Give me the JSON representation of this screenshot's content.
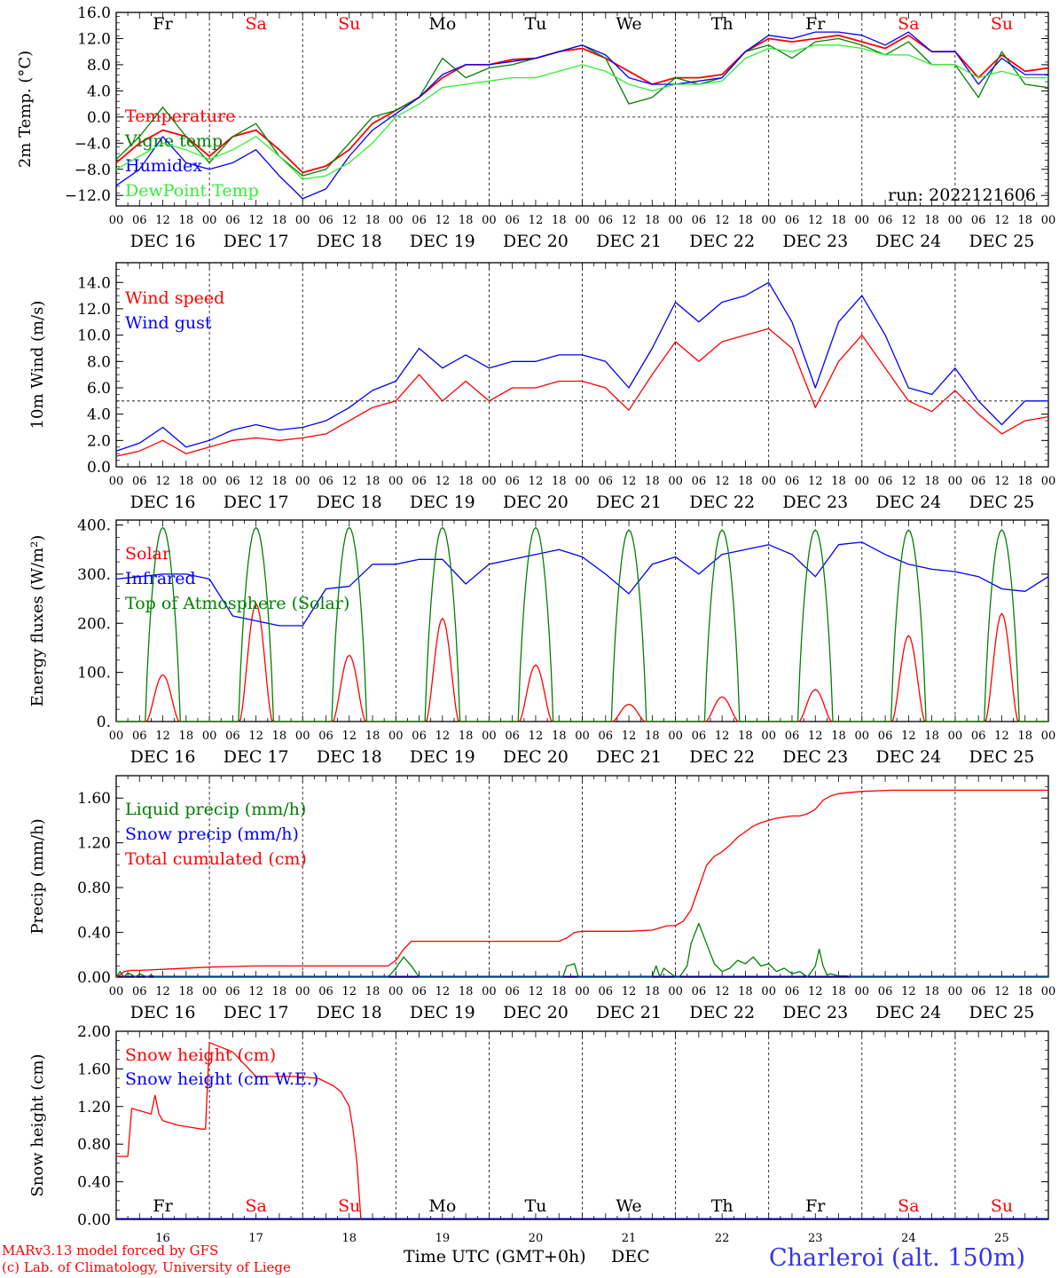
{
  "run_label": "run: 2022121606",
  "xaxis_title": "Time UTC (GMT+0h)",
  "month_label": "DEC",
  "credit_line1": "MARv3.13 model forced by GFS",
  "credit_line2": "(c) Lab. of Climatology, University of Liege",
  "station_label": "Charleroi (alt. 150m)",
  "colors": {
    "red": "#ff0000",
    "green": "#008000",
    "blue": "#0000ff",
    "lightgreen": "#33ee33",
    "station": "#3333ee"
  },
  "days": [
    {
      "abbr": "Fr",
      "date": "DEC 16",
      "num": "16",
      "weekend": false
    },
    {
      "abbr": "Sa",
      "date": "DEC 17",
      "num": "17",
      "weekend": true
    },
    {
      "abbr": "Su",
      "date": "DEC 18",
      "num": "18",
      "weekend": true
    },
    {
      "abbr": "Mo",
      "date": "DEC 19",
      "num": "19",
      "weekend": false
    },
    {
      "abbr": "Tu",
      "date": "DEC 20",
      "num": "20",
      "weekend": false
    },
    {
      "abbr": "We",
      "date": "DEC 21",
      "num": "21",
      "weekend": false
    },
    {
      "abbr": "Th",
      "date": "DEC 22",
      "num": "22",
      "weekend": false
    },
    {
      "abbr": "Fr",
      "date": "DEC 23",
      "num": "23",
      "weekend": false
    },
    {
      "abbr": "Sa",
      "date": "DEC 24",
      "num": "24",
      "weekend": true
    },
    {
      "abbr": "Su",
      "date": "DEC 25",
      "num": "25",
      "weekend": true
    }
  ],
  "hour_labels": [
    "00",
    "06",
    "12",
    "18"
  ],
  "chart_data": [
    {
      "type": "line",
      "ylabel": "2m Temp. (°C)",
      "ylim": [
        -13.6,
        16
      ],
      "yticks": [
        -12,
        -8,
        -4,
        0,
        4,
        8,
        12,
        16
      ],
      "ytick_labels": [
        "−12.0",
        "−8.0",
        "−4.0",
        "0.0",
        "4.0",
        "8.0",
        "12.0",
        "16.0"
      ],
      "ref_line": 0,
      "x_hours": [
        0,
        6,
        12,
        18,
        24,
        30,
        36,
        42,
        48,
        54,
        60,
        66,
        72,
        78,
        84,
        90,
        96,
        102,
        108,
        114,
        120,
        126,
        132,
        138,
        144,
        150,
        156,
        162,
        168,
        174,
        180,
        186,
        192,
        198,
        204,
        210,
        216,
        222,
        228,
        234,
        240
      ],
      "series": [
        {
          "name": "Temperature",
          "color": "#ff0000",
          "values": [
            -7,
            -4,
            -2,
            -3,
            -6,
            -3,
            -2,
            -5,
            -8.5,
            -7.5,
            -5,
            -1,
            1,
            3,
            6,
            8,
            8,
            8.8,
            9,
            10,
            10.5,
            9,
            7,
            5,
            6,
            6,
            6.5,
            10,
            12,
            11.5,
            12,
            12.5,
            11.5,
            10.5,
            12.5,
            10,
            10,
            6,
            9.5,
            7,
            7.5
          ]
        },
        {
          "name": "Vigne temp",
          "color": "#008000",
          "values": [
            -6.5,
            -3,
            1.5,
            -3,
            -7,
            -3,
            -1,
            -6,
            -9,
            -8,
            -4,
            0,
            1,
            3,
            9,
            6,
            7.5,
            8,
            9,
            10,
            11,
            9,
            2,
            3,
            6,
            5,
            6,
            10,
            11,
            9,
            11.5,
            12,
            11,
            9.5,
            11.5,
            8,
            8,
            3,
            10,
            5,
            4.5
          ]
        },
        {
          "name": "Humidex",
          "color": "#0000ff",
          "values": [
            -10.5,
            -8,
            -3,
            -7,
            -8,
            -7,
            -5,
            -9,
            -12.5,
            -11,
            -6,
            -2,
            0.5,
            3,
            6.5,
            8,
            8,
            8.5,
            9,
            10,
            11,
            9.5,
            6,
            5,
            5,
            5.5,
            6,
            10,
            12.5,
            12,
            13,
            13,
            12.5,
            11,
            13,
            10,
            10,
            5,
            9,
            6.5,
            6.5
          ]
        },
        {
          "name": "DewPoint Temp",
          "color": "#33ee33",
          "values": [
            -8,
            -6,
            -4,
            -5,
            -6.5,
            -5,
            -3,
            -6,
            -9.5,
            -9,
            -7,
            -4,
            0,
            2,
            4.5,
            5,
            5.5,
            6,
            6,
            7,
            8,
            7,
            5,
            4,
            5,
            5,
            5.5,
            9,
            10.5,
            10,
            11,
            11,
            10.5,
            9.5,
            9.5,
            8,
            8,
            6,
            7,
            6,
            6
          ]
        }
      ]
    },
    {
      "type": "line",
      "ylabel": "10m Wind (m/s)",
      "ylim": [
        0,
        15.5
      ],
      "yticks": [
        0,
        2,
        4,
        6,
        8,
        10,
        12,
        14
      ],
      "ytick_labels": [
        "0.0",
        "2.0",
        "4.0",
        "6.0",
        "8.0",
        "10.0",
        "12.0",
        "14.0"
      ],
      "ref_line": 5,
      "x_hours": [
        0,
        6,
        12,
        18,
        24,
        30,
        36,
        42,
        48,
        54,
        60,
        66,
        72,
        78,
        84,
        90,
        96,
        102,
        108,
        114,
        120,
        126,
        132,
        138,
        144,
        150,
        156,
        162,
        168,
        174,
        180,
        186,
        192,
        198,
        204,
        210,
        216,
        222,
        228,
        234,
        240
      ],
      "series": [
        {
          "name": "Wind speed",
          "color": "#ff0000",
          "values": [
            0.8,
            1.2,
            2,
            1,
            1.5,
            2,
            2.2,
            2,
            2.2,
            2.5,
            3.5,
            4.5,
            5,
            7,
            5,
            6.5,
            5,
            6,
            6,
            6.5,
            6.5,
            6,
            4.3,
            7,
            9.5,
            8,
            9.5,
            10,
            10.5,
            9,
            4.5,
            8,
            10,
            7.5,
            5,
            4.2,
            5.8,
            4,
            2.5,
            3.5,
            3.8
          ]
        },
        {
          "name": "Wind gust",
          "color": "#0000ff",
          "values": [
            1.2,
            1.8,
            3,
            1.5,
            2,
            2.8,
            3.2,
            2.8,
            3,
            3.5,
            4.5,
            5.8,
            6.5,
            9,
            7.5,
            8.5,
            7.5,
            8,
            8,
            8.5,
            8.5,
            8,
            6,
            9,
            12.5,
            11,
            12.5,
            13,
            14,
            11,
            6,
            11,
            13,
            10,
            6,
            5.5,
            7.5,
            5,
            3.2,
            5,
            5
          ]
        }
      ]
    },
    {
      "type": "line",
      "ylabel": "Energy fluxes (W/m²)",
      "ylim": [
        0,
        410
      ],
      "yticks": [
        0,
        100,
        200,
        300,
        400
      ],
      "ytick_labels": [
        "0.",
        "100.",
        "200.",
        "300.",
        "400."
      ],
      "daily_peak_hour": 12,
      "series": [
        {
          "name": "Solar",
          "color": "#ff0000",
          "daily_peak": [
            95,
            240,
            135,
            210,
            115,
            35,
            50,
            65,
            175,
            220
          ]
        },
        {
          "name": "Infrared",
          "color": "#0000ff",
          "x_hours": [
            0,
            6,
            12,
            18,
            24,
            30,
            36,
            42,
            48,
            54,
            60,
            66,
            72,
            78,
            84,
            90,
            96,
            102,
            108,
            114,
            120,
            126,
            132,
            138,
            144,
            150,
            156,
            162,
            168,
            174,
            180,
            186,
            192,
            198,
            204,
            210,
            216,
            222,
            228,
            234,
            240
          ],
          "values": [
            290,
            295,
            300,
            300,
            290,
            215,
            205,
            195,
            195,
            270,
            275,
            320,
            320,
            330,
            330,
            280,
            320,
            330,
            340,
            350,
            335,
            300,
            260,
            320,
            335,
            300,
            340,
            350,
            360,
            340,
            295,
            360,
            365,
            340,
            320,
            310,
            305,
            295,
            270,
            265,
            295
          ]
        },
        {
          "name": "Top of Atmosphere (Solar)",
          "color": "#008000",
          "daily_peak": [
            395,
            395,
            395,
            395,
            395,
            390,
            390,
            390,
            390,
            390
          ]
        }
      ]
    },
    {
      "type": "line",
      "ylabel": "Precip (mm/h)",
      "ylim": [
        0,
        1.8
      ],
      "yticks": [
        0,
        0.4,
        0.8,
        1.2,
        1.6
      ],
      "ytick_labels": [
        "0.00",
        "0.40",
        "0.80",
        "1.20",
        "1.60"
      ],
      "series": [
        {
          "name": "Liquid precip (mm/h)",
          "color": "#008000",
          "x_hours": [
            0,
            1,
            2,
            3,
            5,
            6,
            8,
            9,
            10,
            40,
            70,
            72,
            74,
            76,
            78,
            80,
            115,
            116,
            118,
            119,
            138,
            139,
            140,
            141,
            144,
            145,
            146,
            147,
            148,
            150,
            152,
            154,
            156,
            158,
            160,
            162,
            164,
            166,
            168,
            170,
            172,
            174,
            176,
            178,
            180,
            181,
            182,
            183,
            184,
            186,
            188,
            190,
            240
          ],
          "values": [
            0,
            0.05,
            0,
            0.04,
            0,
            0.03,
            0,
            0.02,
            0,
            0,
            0,
            0.08,
            0.18,
            0.1,
            0,
            0,
            0,
            0.1,
            0.12,
            0,
            0,
            0.1,
            0,
            0.08,
            0,
            0,
            0.05,
            0.1,
            0.3,
            0.48,
            0.3,
            0.12,
            0.05,
            0.08,
            0.15,
            0.12,
            0.18,
            0.1,
            0.12,
            0.05,
            0.08,
            0.03,
            0.05,
            0,
            0.1,
            0.25,
            0.1,
            0.02,
            0.03,
            0.01,
            0.01,
            0,
            0
          ]
        },
        {
          "name": "Snow precip (mm/h)",
          "color": "#0000ff",
          "values": []
        },
        {
          "name": "Total cumulated (cm)",
          "color": "#ff0000",
          "x_hours": [
            0,
            1,
            2,
            4,
            6,
            12,
            24,
            36,
            48,
            60,
            70,
            72,
            74,
            76,
            78,
            80,
            96,
            114,
            116,
            118,
            120,
            132,
            138,
            140,
            142,
            144,
            146,
            148,
            150,
            152,
            154,
            156,
            158,
            160,
            162,
            164,
            166,
            168,
            170,
            172,
            174,
            176,
            178,
            180,
            182,
            184,
            186,
            192,
            200,
            210,
            240
          ],
          "values": [
            0,
            0.02,
            0.05,
            0.06,
            0.06,
            0.07,
            0.09,
            0.1,
            0.1,
            0.1,
            0.1,
            0.15,
            0.25,
            0.32,
            0.32,
            0.32,
            0.32,
            0.32,
            0.35,
            0.4,
            0.41,
            0.41,
            0.42,
            0.44,
            0.46,
            0.46,
            0.5,
            0.6,
            0.8,
            1,
            1.08,
            1.12,
            1.18,
            1.25,
            1.3,
            1.35,
            1.38,
            1.4,
            1.42,
            1.43,
            1.44,
            1.44,
            1.46,
            1.5,
            1.58,
            1.62,
            1.64,
            1.66,
            1.67,
            1.67,
            1.67
          ]
        }
      ]
    },
    {
      "type": "line",
      "ylabel": "Snow height (cm)",
      "ylim": [
        0,
        2
      ],
      "yticks": [
        0,
        0.4,
        0.8,
        1.2,
        1.6,
        2
      ],
      "ytick_labels": [
        "0.00",
        "0.40",
        "0.80",
        "1.20",
        "1.60",
        "2.00"
      ],
      "series": [
        {
          "name": "Snow height (cm)",
          "color": "#ff0000",
          "x_hours": [
            0,
            3,
            4,
            9,
            10,
            11,
            12,
            16,
            22,
            23,
            24,
            30,
            36,
            40,
            46,
            52,
            56,
            58,
            60,
            61,
            62,
            63
          ],
          "values": [
            0.67,
            0.67,
            1.18,
            1.12,
            1.32,
            1.12,
            1.05,
            1,
            0.96,
            0.96,
            1.88,
            1.78,
            1.52,
            1.52,
            1.52,
            1.5,
            1.42,
            1.35,
            1.2,
            0.95,
            0.6,
            0
          ]
        },
        {
          "name": "Snow height (cm W.E.)",
          "color": "#0000ff",
          "values": []
        }
      ]
    }
  ]
}
